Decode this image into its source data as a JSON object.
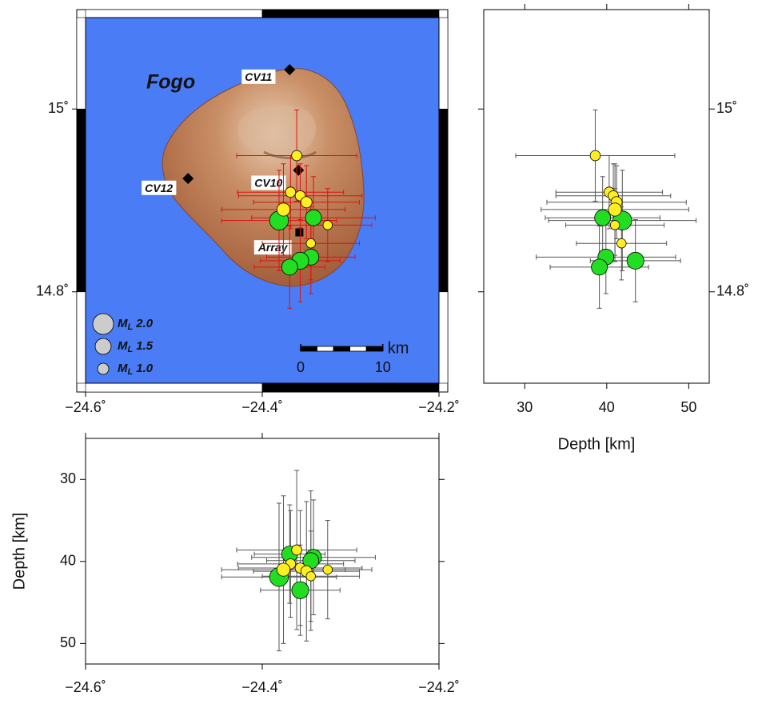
{
  "chart_data": {
    "type": "seismicity",
    "map": {
      "title": "Fogo",
      "xlim": [
        -24.6,
        -24.2
      ],
      "ylim": [
        14.7,
        15.1
      ],
      "xticks": [
        {
          "value": -24.6,
          "label": "−24.6˚"
        },
        {
          "value": -24.4,
          "label": "−24.4˚"
        },
        {
          "value": -24.2,
          "label": "−24.2˚"
        }
      ],
      "yticks": [
        {
          "value": 14.8,
          "label": "14.8˚"
        },
        {
          "value": 15.0,
          "label": "15˚"
        }
      ],
      "ocean_color": "#4a7cf5",
      "error_color": "#e01010",
      "stations": [
        {
          "name": "CV11",
          "lon": -24.369,
          "lat": 15.043,
          "marker": "diamond"
        },
        {
          "name": "CV12",
          "lon": -24.484,
          "lat": 14.924,
          "marker": "diamond"
        },
        {
          "name": "CV10",
          "lon": -24.359,
          "lat": 14.933,
          "marker": "diamond"
        },
        {
          "name": "Array",
          "lon": -24.358,
          "lat": 14.865,
          "marker": "square"
        }
      ],
      "legend": {
        "symbol": "M",
        "subscript": "L",
        "entries": [
          {
            "value": 2.0,
            "label": "2.0"
          },
          {
            "value": 1.5,
            "label": "1.5"
          },
          {
            "value": 1.0,
            "label": "1.0"
          }
        ]
      },
      "scalebar": {
        "ticks": [
          0,
          10
        ],
        "unit": "km"
      }
    },
    "depth_lat": {
      "xlabel": "Depth [km]",
      "xlim": [
        25,
        52.5
      ],
      "xticks": [
        30,
        40,
        50
      ]
    },
    "lon_depth": {
      "ylabel": "Depth [km]",
      "ylim": [
        25,
        52.5
      ],
      "yticks": [
        30,
        40,
        50
      ]
    },
    "error_color": "#555555",
    "series": [
      {
        "color": "#22dd22",
        "lon": [
          -24.381,
          -24.342,
          -24.345,
          -24.357,
          -24.369
        ],
        "lat": [
          14.878,
          14.881,
          14.838,
          14.834,
          14.827
        ],
        "depth": [
          41.9,
          39.5,
          39.9,
          43.5,
          39.1
        ],
        "ml": [
          1.8,
          1.5,
          1.5,
          1.6,
          1.5
        ],
        "lon_err": [
          0.065,
          0.07,
          0.05,
          0.045,
          0.04
        ],
        "lat_err": [
          0.055,
          0.045,
          0.04,
          0.045,
          0.045
        ],
        "depth_err": [
          9,
          7,
          8.5,
          5.5,
          6
        ]
      },
      {
        "color": "#ffee22",
        "lon": [
          -24.361,
          -24.368,
          -24.357,
          -24.35,
          -24.376,
          -24.326,
          -24.345
        ],
        "lat": [
          14.949,
          14.909,
          14.905,
          14.898,
          14.89,
          14.873,
          14.853
        ],
        "depth": [
          38.6,
          40.3,
          40.8,
          41.2,
          41.0,
          41.0,
          41.8
        ],
        "ml": [
          0.9,
          0.9,
          0.9,
          1.0,
          1.2,
          0.8,
          0.8
        ],
        "lon_err": [
          0.068,
          0.06,
          0.07,
          0.06,
          0.07,
          0.05,
          0.055
        ],
        "lat_err": [
          0.05,
          0.04,
          0.035,
          0.04,
          0.05,
          0.04,
          0.04
        ],
        "depth_err": [
          9.7,
          6.5,
          7,
          8.5,
          9,
          6,
          5.5
        ]
      }
    ]
  }
}
